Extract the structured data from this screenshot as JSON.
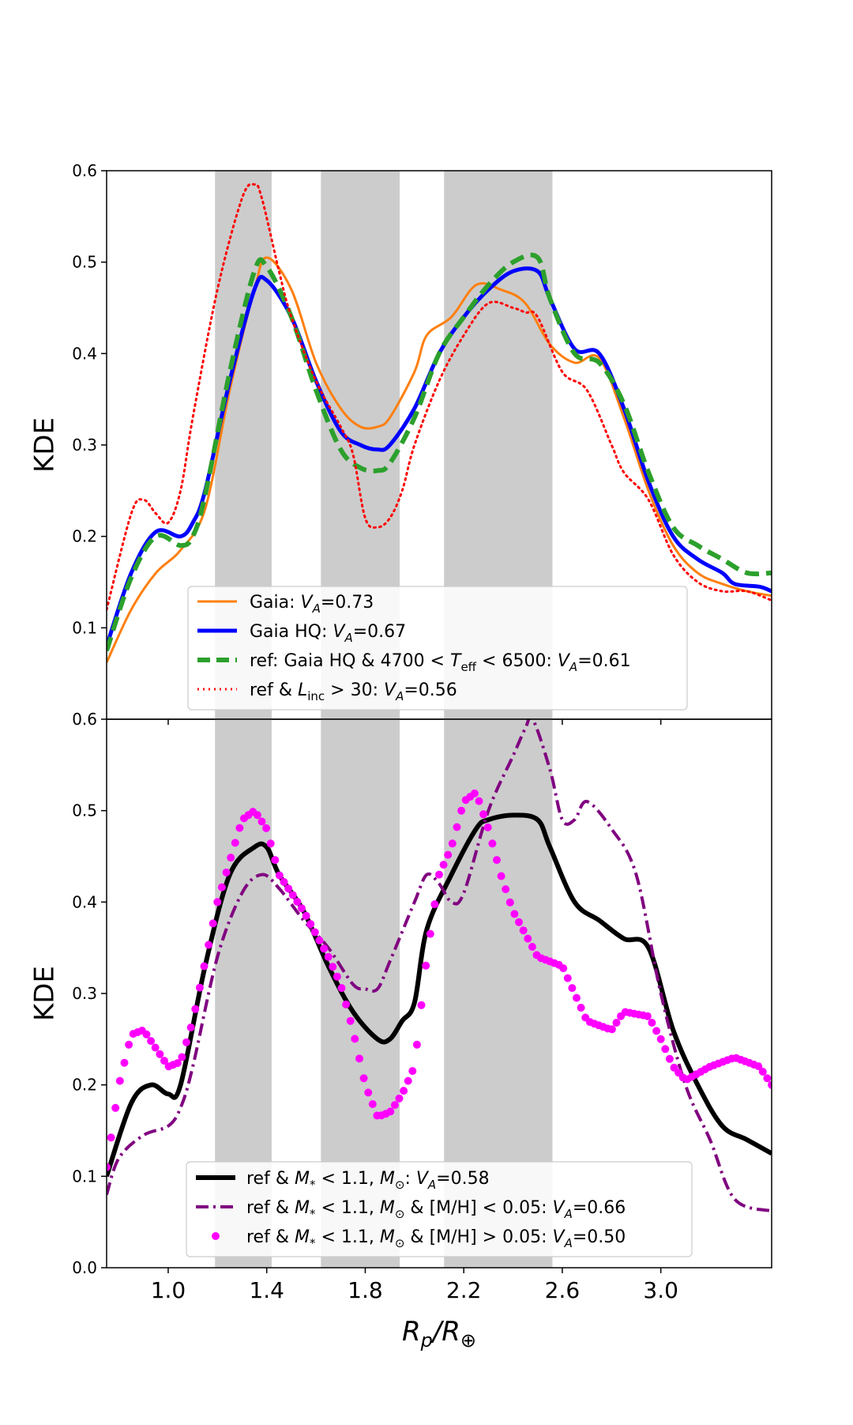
{
  "chart_data": [
    {
      "type": "line",
      "ylabel": "KDE",
      "xlabel": "",
      "xlim": [
        0.75,
        3.45
      ],
      "ylim": [
        0.0,
        0.6
      ],
      "yticks": [
        "0.1",
        "0.2",
        "0.3",
        "0.4",
        "0.5",
        "0.6"
      ],
      "ytick_values": [
        0.1,
        0.2,
        0.3,
        0.4,
        0.5,
        0.6
      ],
      "shaded_bands": [
        [
          1.19,
          1.42
        ],
        [
          1.62,
          1.94
        ],
        [
          2.12,
          2.56
        ]
      ],
      "legend_position": "lower-center",
      "legend": [
        {
          "pre": "Gaia: ",
          "var": "V",
          "sub": "A",
          "post": "=0.73"
        },
        {
          "pre": "Gaia HQ: ",
          "var": "V",
          "sub": "A",
          "post": "=0.67"
        },
        {
          "pre": "ref: Gaia HQ & 4700 < ",
          "var2": "T",
          "sub2": "eff",
          "mid": " < 6500: ",
          "var": "V",
          "sub": "A",
          "post": "=0.61"
        },
        {
          "pre": "ref & ",
          "var2": "L",
          "sub2": "inc",
          "mid": " > 30: ",
          "var": "V",
          "sub": "A",
          "post": "=0.56"
        }
      ],
      "series": [
        {
          "name": "Gaia",
          "color": "#ff7f0e",
          "style": "solid",
          "width": 3,
          "x": [
            0.75,
            0.85,
            0.95,
            1.05,
            1.15,
            1.25,
            1.35,
            1.4,
            1.5,
            1.6,
            1.7,
            1.78,
            1.85,
            1.9,
            2.0,
            2.05,
            2.15,
            2.25,
            2.35,
            2.45,
            2.55,
            2.65,
            2.75,
            2.85,
            2.95,
            3.05,
            3.15,
            3.25,
            3.35,
            3.45
          ],
          "y": [
            0.062,
            0.12,
            0.16,
            0.185,
            0.23,
            0.36,
            0.47,
            0.505,
            0.47,
            0.39,
            0.34,
            0.32,
            0.32,
            0.33,
            0.38,
            0.42,
            0.44,
            0.475,
            0.47,
            0.455,
            0.41,
            0.39,
            0.395,
            0.33,
            0.25,
            0.19,
            0.16,
            0.148,
            0.14,
            0.135
          ]
        },
        {
          "name": "Gaia HQ",
          "color": "#0000ff",
          "style": "solid",
          "width": 5,
          "x": [
            0.75,
            0.85,
            0.95,
            1.05,
            1.1,
            1.15,
            1.25,
            1.35,
            1.4,
            1.5,
            1.6,
            1.7,
            1.78,
            1.85,
            1.9,
            2.0,
            2.1,
            2.2,
            2.3,
            2.4,
            2.5,
            2.55,
            2.65,
            2.75,
            2.85,
            2.95,
            3.05,
            3.15,
            3.25,
            3.3,
            3.4,
            3.45
          ],
          "y": [
            0.08,
            0.16,
            0.205,
            0.2,
            0.215,
            0.25,
            0.37,
            0.47,
            0.48,
            0.44,
            0.37,
            0.315,
            0.3,
            0.295,
            0.3,
            0.34,
            0.4,
            0.44,
            0.47,
            0.49,
            0.49,
            0.46,
            0.405,
            0.4,
            0.34,
            0.26,
            0.2,
            0.175,
            0.16,
            0.148,
            0.145,
            0.14
          ]
        },
        {
          "name": "ref: Gaia HQ & 4700 < T_eff < 6500",
          "color": "#2ca02c",
          "style": "dashed",
          "width": 6,
          "x": [
            0.75,
            0.85,
            0.95,
            1.05,
            1.1,
            1.15,
            1.25,
            1.35,
            1.4,
            1.5,
            1.6,
            1.7,
            1.78,
            1.85,
            1.9,
            2.0,
            2.1,
            2.2,
            2.3,
            2.4,
            2.5,
            2.55,
            2.65,
            2.75,
            2.85,
            2.95,
            3.05,
            3.15,
            3.25,
            3.35,
            3.45
          ],
          "y": [
            0.075,
            0.155,
            0.2,
            0.19,
            0.2,
            0.245,
            0.38,
            0.49,
            0.495,
            0.44,
            0.36,
            0.295,
            0.275,
            0.272,
            0.28,
            0.33,
            0.4,
            0.44,
            0.475,
            0.5,
            0.505,
            0.46,
            0.4,
            0.39,
            0.345,
            0.27,
            0.21,
            0.19,
            0.175,
            0.16,
            0.16
          ]
        },
        {
          "name": "ref & L_inc > 30",
          "color": "#ff0000",
          "style": "dotted",
          "width": 3,
          "x": [
            0.75,
            0.85,
            0.9,
            0.95,
            1.0,
            1.05,
            1.1,
            1.2,
            1.3,
            1.35,
            1.38,
            1.45,
            1.5,
            1.6,
            1.7,
            1.75,
            1.8,
            1.85,
            1.9,
            1.95,
            2.0,
            2.1,
            2.2,
            2.3,
            2.4,
            2.45,
            2.5,
            2.6,
            2.7,
            2.8,
            2.85,
            2.95,
            3.05,
            3.15,
            3.25,
            3.35,
            3.45
          ],
          "y": [
            0.12,
            0.225,
            0.24,
            0.225,
            0.215,
            0.25,
            0.33,
            0.47,
            0.57,
            0.585,
            0.57,
            0.49,
            0.44,
            0.37,
            0.32,
            0.29,
            0.22,
            0.21,
            0.22,
            0.25,
            0.3,
            0.37,
            0.42,
            0.455,
            0.45,
            0.445,
            0.44,
            0.38,
            0.36,
            0.3,
            0.27,
            0.24,
            0.18,
            0.15,
            0.14,
            0.14,
            0.13
          ]
        }
      ]
    },
    {
      "type": "line",
      "ylabel": "KDE",
      "xlabel": "R_p/R_⊕",
      "xlim": [
        0.75,
        3.45
      ],
      "ylim": [
        0.0,
        0.6
      ],
      "yticks": [
        "0.0",
        "0.1",
        "0.2",
        "0.3",
        "0.4",
        "0.5",
        "0.6"
      ],
      "ytick_values": [
        0.0,
        0.1,
        0.2,
        0.3,
        0.4,
        0.5,
        0.6
      ],
      "xticks": [
        "1.0",
        "1.4",
        "1.8",
        "2.2",
        "2.6",
        "3.0"
      ],
      "xtick_values": [
        1.0,
        1.4,
        1.8,
        2.2,
        2.6,
        3.0
      ],
      "shaded_bands": [
        [
          1.19,
          1.42
        ],
        [
          1.62,
          1.94
        ],
        [
          2.12,
          2.56
        ]
      ],
      "legend_position": "lower-center",
      "legend": [
        {
          "pre": "ref & ",
          "var2": "M",
          "sub2": "*",
          "mid": " < 1.1, ",
          "var3": "M",
          "sub3": "⊙",
          "post2": ": ",
          "var": "V",
          "sub": "A",
          "post": "=0.58"
        },
        {
          "pre": "ref & ",
          "var2": "M",
          "sub2": "*",
          "mid": " < 1.1, ",
          "var3": "M",
          "sub3": "⊙",
          "post2": " & [M/H] < 0.05: ",
          "var": "V",
          "sub": "A",
          "post": "=0.66"
        },
        {
          "pre": "ref & ",
          "var2": "M",
          "sub2": "*",
          "mid": " < 1.1, ",
          "var3": "M",
          "sub3": "⊙",
          "post2": " & [M/H] > 0.05: ",
          "var": "V",
          "sub": "A",
          "post": "=0.50"
        }
      ],
      "series": [
        {
          "name": "ref & M* < 1.1 Msun",
          "color": "#000000",
          "style": "solid",
          "width": 6,
          "x": [
            0.75,
            0.85,
            0.93,
            1.0,
            1.05,
            1.15,
            1.25,
            1.35,
            1.4,
            1.45,
            1.55,
            1.65,
            1.75,
            1.85,
            1.9,
            1.95,
            2.0,
            2.05,
            2.15,
            2.25,
            2.3,
            2.4,
            2.5,
            2.55,
            2.65,
            2.75,
            2.85,
            2.95,
            3.05,
            3.15,
            3.25,
            3.35,
            3.45
          ],
          "y": [
            0.1,
            0.18,
            0.2,
            0.19,
            0.2,
            0.33,
            0.43,
            0.46,
            0.46,
            0.43,
            0.39,
            0.33,
            0.28,
            0.25,
            0.25,
            0.27,
            0.29,
            0.37,
            0.43,
            0.48,
            0.49,
            0.495,
            0.49,
            0.46,
            0.4,
            0.38,
            0.36,
            0.35,
            0.26,
            0.2,
            0.155,
            0.14,
            0.125
          ]
        },
        {
          "name": "ref & M* < 1.1 Msun & [M/H] < 0.05",
          "color": "#800080",
          "style": "dashdot",
          "width": 4,
          "x": [
            0.75,
            0.8,
            0.9,
            1.0,
            1.05,
            1.1,
            1.2,
            1.3,
            1.38,
            1.45,
            1.55,
            1.65,
            1.75,
            1.8,
            1.85,
            1.9,
            2.0,
            2.05,
            2.1,
            2.15,
            2.2,
            2.3,
            2.4,
            2.45,
            2.48,
            2.55,
            2.6,
            2.65,
            2.7,
            2.8,
            2.9,
            3.0,
            3.1,
            3.2,
            3.3,
            3.45
          ],
          "y": [
            0.08,
            0.12,
            0.145,
            0.155,
            0.175,
            0.22,
            0.34,
            0.41,
            0.43,
            0.415,
            0.38,
            0.35,
            0.31,
            0.305,
            0.305,
            0.335,
            0.4,
            0.43,
            0.42,
            0.4,
            0.41,
            0.5,
            0.56,
            0.59,
            0.6,
            0.545,
            0.49,
            0.49,
            0.51,
            0.48,
            0.43,
            0.3,
            0.2,
            0.14,
            0.075,
            0.062
          ]
        },
        {
          "name": "ref & M* < 1.1 Msun & [M/H] > 0.05",
          "color": "#ff00ff",
          "style": "dots",
          "width": 5,
          "x": [
            0.75,
            0.8,
            0.85,
            0.9,
            0.95,
            1.0,
            1.05,
            1.1,
            1.2,
            1.3,
            1.35,
            1.4,
            1.45,
            1.55,
            1.65,
            1.7,
            1.75,
            1.8,
            1.85,
            1.9,
            1.95,
            2.0,
            2.05,
            2.1,
            2.15,
            2.2,
            2.25,
            2.3,
            2.35,
            2.4,
            2.5,
            2.6,
            2.7,
            2.8,
            2.85,
            2.95,
            3.0,
            3.05,
            3.1,
            3.2,
            3.3,
            3.4,
            3.45
          ],
          "y": [
            0.11,
            0.2,
            0.255,
            0.26,
            0.24,
            0.22,
            0.225,
            0.27,
            0.4,
            0.49,
            0.5,
            0.48,
            0.43,
            0.39,
            0.34,
            0.31,
            0.26,
            0.2,
            0.165,
            0.17,
            0.19,
            0.22,
            0.34,
            0.43,
            0.46,
            0.51,
            0.52,
            0.48,
            0.43,
            0.39,
            0.34,
            0.33,
            0.27,
            0.26,
            0.28,
            0.275,
            0.25,
            0.22,
            0.205,
            0.22,
            0.23,
            0.22,
            0.2
          ]
        }
      ]
    }
  ]
}
